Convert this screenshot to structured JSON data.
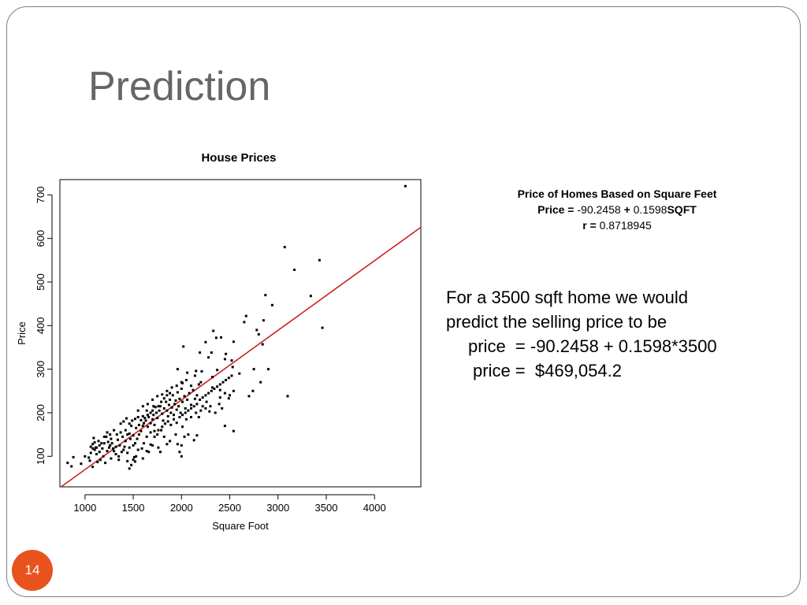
{
  "slide": {
    "title": "Prediction",
    "number": "14"
  },
  "info": {
    "heading": "Price of Homes Based on Square Feet",
    "eq_label": "Price =",
    "eq_intercept": "-90.2458",
    "eq_plus": "+",
    "eq_slope": "0.1598",
    "eq_var": "SQFT",
    "r_label": "r =",
    "r_value": "0.8718945"
  },
  "prediction": {
    "line1": "For a 3500 sqft home we would",
    "line2": "predict the selling price to be",
    "line3": "price  = -90.2458 + 0.1598*3500",
    "line4": "price =  $469,054.2"
  },
  "colors": {
    "regression_line": "#cc2222",
    "points": "#000000",
    "slide_number_bg": "#e8521c",
    "title": "#666666"
  },
  "chart_data": {
    "type": "scatter",
    "title": "House Prices",
    "xlabel": "Square Foot",
    "ylabel": "Price",
    "xlim": [
      740,
      4480
    ],
    "ylim": [
      30,
      735
    ],
    "xticks": [
      1000,
      1500,
      2000,
      2500,
      3000,
      3500,
      4000
    ],
    "yticks": [
      100,
      200,
      300,
      400,
      500,
      600,
      700
    ],
    "grid": false,
    "regression": {
      "intercept": -90.2458,
      "slope": 0.1598
    },
    "points": [
      [
        4320,
        720
      ],
      [
        3070,
        580
      ],
      [
        3430,
        550
      ],
      [
        3170,
        528
      ],
      [
        3340,
        468
      ],
      [
        2870,
        470
      ],
      [
        2940,
        447
      ],
      [
        3460,
        395
      ],
      [
        2670,
        422
      ],
      [
        2650,
        408
      ],
      [
        2850,
        412
      ],
      [
        2780,
        390
      ],
      [
        2800,
        380
      ],
      [
        2840,
        357
      ],
      [
        2540,
        363
      ],
      [
        2330,
        388
      ],
      [
        2360,
        372
      ],
      [
        2410,
        373
      ],
      [
        2250,
        362
      ],
      [
        2020,
        352
      ],
      [
        2460,
        335
      ],
      [
        2190,
        338
      ],
      [
        2310,
        338
      ],
      [
        2280,
        327
      ],
      [
        2450,
        323
      ],
      [
        2520,
        320
      ],
      [
        2530,
        305
      ],
      [
        2370,
        298
      ],
      [
        2210,
        295
      ],
      [
        2320,
        282
      ],
      [
        2140,
        285
      ],
      [
        2200,
        270
      ],
      [
        2050,
        275
      ],
      [
        2010,
        268
      ],
      [
        2180,
        265
      ],
      [
        2100,
        262
      ],
      [
        2320,
        258
      ],
      [
        2400,
        252
      ],
      [
        2540,
        250
      ],
      [
        2450,
        245
      ],
      [
        2490,
        233
      ],
      [
        2700,
        238
      ],
      [
        2740,
        250
      ],
      [
        2390,
        220
      ],
      [
        2420,
        210
      ],
      [
        2260,
        225
      ],
      [
        2290,
        203
      ],
      [
        2220,
        215
      ],
      [
        2180,
        190
      ],
      [
        3100,
        238
      ],
      [
        2450,
        170
      ],
      [
        2540,
        158
      ],
      [
        2010,
        168
      ],
      [
        2030,
        145
      ],
      [
        2070,
        150
      ],
      [
        2130,
        137
      ],
      [
        2160,
        148
      ],
      [
        2000,
        125
      ],
      [
        1980,
        110
      ],
      [
        2000,
        100
      ],
      [
        1960,
        128
      ],
      [
        1940,
        150
      ],
      [
        1880,
        135
      ],
      [
        1850,
        128
      ],
      [
        1820,
        145
      ],
      [
        1790,
        160
      ],
      [
        1780,
        110
      ],
      [
        1720,
        158
      ],
      [
        1680,
        127
      ],
      [
        1610,
        130
      ],
      [
        1550,
        115
      ],
      [
        1530,
        100
      ],
      [
        1500,
        92
      ],
      [
        1480,
        80
      ],
      [
        1460,
        72
      ],
      [
        1520,
        88
      ],
      [
        1420,
        135
      ],
      [
        1400,
        115
      ],
      [
        1440,
        108
      ],
      [
        1370,
        155
      ],
      [
        1340,
        138
      ],
      [
        1320,
        122
      ],
      [
        1300,
        112
      ],
      [
        1280,
        130
      ],
      [
        1260,
        150
      ],
      [
        1240,
        133
      ],
      [
        1220,
        145
      ],
      [
        1200,
        130
      ],
      [
        1180,
        118
      ],
      [
        1150,
        110
      ],
      [
        1120,
        120
      ],
      [
        1100,
        132
      ],
      [
        1090,
        142
      ],
      [
        1080,
        118
      ],
      [
        1060,
        108
      ],
      [
        1040,
        97
      ],
      [
        1000,
        100
      ],
      [
        960,
        83
      ],
      [
        880,
        98
      ],
      [
        860,
        77
      ],
      [
        820,
        85
      ],
      [
        1050,
        90
      ],
      [
        1080,
        76
      ],
      [
        1130,
        87
      ],
      [
        1210,
        85
      ],
      [
        1270,
        95
      ],
      [
        1350,
        92
      ],
      [
        1440,
        89
      ],
      [
        1510,
        98
      ],
      [
        1600,
        95
      ],
      [
        1640,
        112
      ],
      [
        1700,
        125
      ],
      [
        1760,
        120
      ],
      [
        1420,
        160
      ],
      [
        1460,
        152
      ],
      [
        1500,
        148
      ],
      [
        1480,
        170
      ],
      [
        1530,
        165
      ],
      [
        1560,
        172
      ],
      [
        1580,
        158
      ],
      [
        1610,
        176
      ],
      [
        1630,
        182
      ],
      [
        1650,
        168
      ],
      [
        1660,
        190
      ],
      [
        1680,
        176
      ],
      [
        1700,
        185
      ],
      [
        1710,
        195
      ],
      [
        1720,
        172
      ],
      [
        1740,
        200
      ],
      [
        1750,
        188
      ],
      [
        1770,
        205
      ],
      [
        1780,
        215
      ],
      [
        1800,
        198
      ],
      [
        1810,
        182
      ],
      [
        1820,
        210
      ],
      [
        1840,
        225
      ],
      [
        1850,
        205
      ],
      [
        1860,
        192
      ],
      [
        1870,
        218
      ],
      [
        1880,
        230
      ],
      [
        1890,
        200
      ],
      [
        1900,
        212
      ],
      [
        1910,
        240
      ],
      [
        1920,
        195
      ],
      [
        1930,
        220
      ],
      [
        1940,
        228
      ],
      [
        1950,
        207
      ],
      [
        1960,
        247
      ],
      [
        1970,
        215
      ],
      [
        1980,
        232
      ],
      [
        1990,
        200
      ],
      [
        2000,
        255
      ],
      [
        2010,
        225
      ],
      [
        2030,
        238
      ],
      [
        2040,
        210
      ],
      [
        2060,
        230
      ],
      [
        2080,
        245
      ],
      [
        2100,
        218
      ],
      [
        2120,
        252
      ],
      [
        2140,
        232
      ],
      [
        2160,
        240
      ],
      [
        1960,
        300
      ],
      [
        2060,
        292
      ],
      [
        2150,
        296
      ],
      [
        1370,
        175
      ],
      [
        1400,
        180
      ],
      [
        1430,
        187
      ],
      [
        1460,
        175
      ],
      [
        1490,
        182
      ],
      [
        1520,
        186
      ],
      [
        1550,
        190
      ],
      [
        1580,
        183
      ],
      [
        1600,
        192
      ],
      [
        1620,
        188
      ],
      [
        1650,
        195
      ],
      [
        1680,
        200
      ],
      [
        1700,
        205
      ],
      [
        1730,
        213
      ],
      [
        1760,
        215
      ],
      [
        1790,
        225
      ],
      [
        1820,
        233
      ],
      [
        1850,
        240
      ],
      [
        1880,
        245
      ],
      [
        1710,
        215
      ],
      [
        1640,
        205
      ],
      [
        1600,
        170
      ],
      [
        1560,
        150
      ],
      [
        1540,
        140
      ],
      [
        1500,
        125
      ],
      [
        1470,
        140
      ],
      [
        1440,
        150
      ],
      [
        1390,
        145
      ],
      [
        1360,
        125
      ],
      [
        1330,
        150
      ],
      [
        1300,
        160
      ],
      [
        1270,
        140
      ],
      [
        1250,
        120
      ],
      [
        1230,
        155
      ],
      [
        1200,
        145
      ],
      [
        1170,
        130
      ],
      [
        1150,
        125
      ],
      [
        1120,
        105
      ],
      [
        1100,
        115
      ],
      [
        1080,
        128
      ],
      [
        1640,
        145
      ],
      [
        1680,
        155
      ],
      [
        1720,
        145
      ],
      [
        1760,
        160
      ],
      [
        1800,
        168
      ],
      [
        1830,
        175
      ],
      [
        1860,
        180
      ],
      [
        1890,
        172
      ],
      [
        1920,
        185
      ],
      [
        1950,
        177
      ],
      [
        1980,
        190
      ],
      [
        2010,
        195
      ],
      [
        2040,
        200
      ],
      [
        2070,
        205
      ],
      [
        2100,
        210
      ],
      [
        2130,
        215
      ],
      [
        2160,
        220
      ],
      [
        2190,
        230
      ],
      [
        2220,
        235
      ],
      [
        2250,
        240
      ],
      [
        2280,
        245
      ],
      [
        2310,
        250
      ],
      [
        2340,
        255
      ],
      [
        2370,
        260
      ],
      [
        2400,
        265
      ],
      [
        2430,
        270
      ],
      [
        2460,
        275
      ],
      [
        2490,
        280
      ],
      [
        2520,
        285
      ],
      [
        1550,
        205
      ],
      [
        1600,
        215
      ],
      [
        1650,
        220
      ],
      [
        1700,
        230
      ],
      [
        1750,
        238
      ],
      [
        1800,
        242
      ],
      [
        1850,
        250
      ],
      [
        1900,
        258
      ],
      [
        1950,
        262
      ],
      [
        2000,
        270
      ],
      [
        2050,
        185
      ],
      [
        2100,
        190
      ],
      [
        2150,
        200
      ],
      [
        2200,
        205
      ],
      [
        2250,
        210
      ],
      [
        2300,
        215
      ],
      [
        2350,
        200
      ],
      [
        2400,
        235
      ],
      [
        2500,
        240
      ],
      [
        2600,
        290
      ],
      [
        2750,
        300
      ],
      [
        2820,
        270
      ],
      [
        2900,
        300
      ],
      [
        1750,
        150
      ],
      [
        1660,
        110
      ],
      [
        1590,
        118
      ],
      [
        1520,
        130
      ],
      [
        1460,
        120
      ],
      [
        1410,
        122
      ],
      [
        1380,
        110
      ],
      [
        1350,
        100
      ],
      [
        1320,
        105
      ],
      [
        1290,
        118
      ],
      [
        1260,
        125
      ],
      [
        1230,
        112
      ],
      [
        1190,
        100
      ],
      [
        1160,
        92
      ],
      [
        1140,
        135
      ],
      [
        1110,
        120
      ],
      [
        1060,
        122
      ]
    ]
  }
}
